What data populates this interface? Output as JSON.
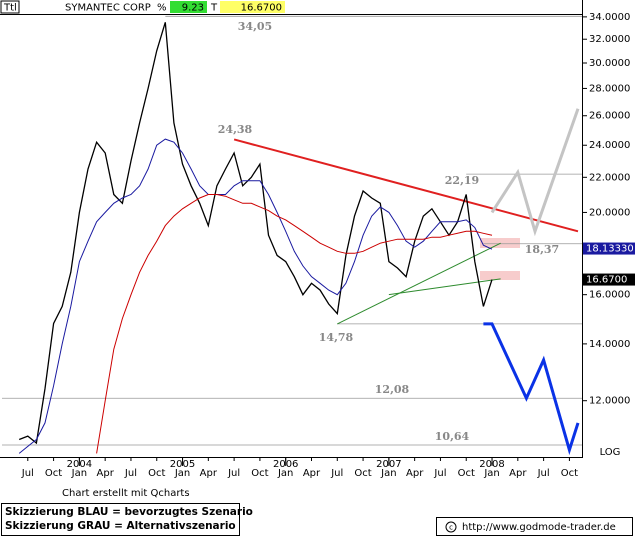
{
  "header": {
    "symbol": "Ttl",
    "name": "SYMANTEC CORP",
    "pct_label": "%",
    "pct": "9.23",
    "last_label": "T",
    "last": "16.6700"
  },
  "chart_data": {
    "type": "line",
    "log_scale": true,
    "x": [
      "2003-06",
      "2003-07",
      "2003-08",
      "2003-09",
      "2003-10",
      "2003-11",
      "2003-12",
      "2004-01",
      "2004-02",
      "2004-03",
      "2004-04",
      "2004-05",
      "2004-06",
      "2004-07",
      "2004-08",
      "2004-09",
      "2004-10",
      "2004-11",
      "2004-12",
      "2005-01",
      "2005-02",
      "2005-03",
      "2005-04",
      "2005-05",
      "2005-06",
      "2005-07",
      "2005-08",
      "2005-09",
      "2005-10",
      "2005-11",
      "2005-12",
      "2006-01",
      "2006-02",
      "2006-03",
      "2006-04",
      "2006-05",
      "2006-06",
      "2006-07",
      "2006-08",
      "2006-09",
      "2006-10",
      "2006-11",
      "2006-12",
      "2007-01",
      "2007-02",
      "2007-03",
      "2007-04",
      "2007-05",
      "2007-06",
      "2007-07",
      "2007-08",
      "2007-09",
      "2007-10",
      "2007-11",
      "2007-12",
      "2008-01"
    ],
    "series": [
      {
        "color": "#000000",
        "values": [
          10.8,
          10.9,
          10.7,
          12.4,
          14.8,
          15.5,
          17.0,
          20.0,
          22.5,
          24.2,
          23.5,
          21.0,
          20.5,
          23.0,
          25.5,
          28.0,
          31.0,
          33.5,
          25.5,
          22.8,
          21.5,
          20.5,
          19.3,
          21.5,
          22.5,
          23.5,
          21.5,
          22.0,
          22.8,
          18.8,
          17.8,
          17.5,
          16.8,
          16.0,
          16.5,
          16.2,
          15.6,
          15.2,
          17.8,
          19.8,
          21.2,
          20.8,
          20.5,
          17.5,
          17.2,
          16.8,
          18.5,
          19.8,
          20.2,
          19.5,
          18.8,
          19.5,
          21.0,
          17.5,
          15.5,
          16.67
        ]
      },
      {
        "color": "#1a1aa0",
        "values": [
          10.4,
          10.6,
          10.8,
          11.3,
          12.5,
          14.0,
          15.5,
          17.5,
          18.5,
          19.5,
          20,
          20.5,
          20.8,
          21,
          21.5,
          22.5,
          24,
          24.4,
          24.2,
          23.5,
          22.5,
          21.5,
          21,
          21,
          21,
          21.5,
          21.8,
          21.8,
          21.8,
          21,
          20,
          19,
          18,
          17.3,
          16.8,
          16.5,
          16.2,
          16.0,
          16.5,
          17.5,
          18.8,
          19.8,
          20.3,
          20,
          19.3,
          18.5,
          18.2,
          18.5,
          19,
          19.5,
          19.5,
          19.5,
          19.6,
          19.2,
          18.3,
          18.1
        ]
      },
      {
        "color": "#cc0000",
        "values": [
          null,
          null,
          null,
          null,
          null,
          null,
          null,
          null,
          null,
          10.4,
          12,
          13.8,
          15,
          16,
          17,
          17.8,
          18.5,
          19.3,
          19.8,
          20.2,
          20.5,
          20.8,
          21,
          21,
          20.9,
          20.7,
          20.5,
          20.5,
          20.3,
          20.1,
          19.8,
          19.6,
          19.3,
          19.0,
          18.7,
          18.4,
          18.2,
          18.0,
          17.9,
          17.9,
          18.0,
          18.2,
          18.4,
          18.5,
          18.6,
          18.6,
          18.6,
          18.6,
          18.7,
          18.7,
          18.8,
          18.9,
          19.0,
          19.0,
          18.9,
          18.8
        ]
      },
      {
        "name": "Skizzierung BLAU = bevorzugtes Szenario",
        "color": "#0a32e6",
        "x": [
          "2007-12",
          "2008-01",
          "2008-05",
          "2008-07",
          "2008-10",
          "2008-11"
        ],
        "values": [
          14.78,
          14.78,
          12.08,
          13.4,
          10.5,
          11.3
        ]
      },
      {
        "name": "Skizzierung GRAU = Alternativszenario",
        "color": "#c4c4c4",
        "x": [
          "2008-01",
          "2008-04",
          "2008-06",
          "2008-11"
        ],
        "values": [
          20.0,
          22.3,
          19.0,
          26.5
        ]
      }
    ],
    "trendlines": [
      {
        "color": "#e02020",
        "x": [
          "2005-07",
          "2008-11"
        ],
        "values": [
          24.38,
          19.0
        ]
      },
      {
        "color": "#2e8b2e",
        "x": [
          "2006-07",
          "2008-02"
        ],
        "values": [
          14.78,
          18.4
        ]
      },
      {
        "color": "#2e8b2e",
        "x": [
          "2007-01",
          "2008-02"
        ],
        "values": [
          16.0,
          16.7
        ]
      }
    ],
    "levels": [
      {
        "x": "2004-11",
        "value": 34.05,
        "label": "34,05",
        "line": true
      },
      {
        "x": "2005-07",
        "value": 24.38,
        "label": "24,38",
        "line": false
      },
      {
        "x": "2007-10",
        "value": 22.19,
        "label": "22,19",
        "line": true
      },
      {
        "x": "2007-12",
        "value": 18.37,
        "label": "18,37",
        "line": true
      },
      {
        "x": "2006-07",
        "value": 14.78,
        "label": "14,78",
        "line": true
      },
      {
        "x": "2003-04",
        "value": 12.08,
        "label": "12,08",
        "line": true
      },
      {
        "x": "2003-04",
        "value": 10.64,
        "label": "10,64",
        "line": true
      }
    ],
    "price_labels": [
      {
        "value": 18.1333,
        "label": "18.13330",
        "color": "#1a1aa0"
      },
      {
        "value": 16.67,
        "label": "16.6700",
        "color": "#000000"
      }
    ],
    "xlim": [
      "2003-04",
      "2008-11"
    ],
    "ylim": [
      10.3,
      35.4
    ],
    "yticks": [
      {
        "value": 12,
        "label": "12.0000"
      },
      {
        "value": 14,
        "label": "14.0000"
      },
      {
        "value": 16,
        "label": "16.0000"
      },
      {
        "value": 18,
        "label": "18.0000"
      },
      {
        "value": 20,
        "label": "20.0000"
      },
      {
        "value": 22,
        "label": "22.0000"
      },
      {
        "value": 24,
        "label": "24.0000"
      },
      {
        "value": 26,
        "label": "26.0000"
      },
      {
        "value": 28,
        "label": "28.0000"
      },
      {
        "value": 30,
        "label": "30.0000"
      },
      {
        "value": 32,
        "label": "32.0000"
      },
      {
        "value": 34,
        "label": "34.0000"
      }
    ],
    "xticks": [
      {
        "value": "2003-07",
        "label": "Jul"
      },
      {
        "value": "2003-10",
        "label": "Oct"
      },
      {
        "value": "2004-01",
        "label": "Jan"
      },
      {
        "value": "2004-04",
        "label": "Apr"
      },
      {
        "value": "2004-07",
        "label": "Jul"
      },
      {
        "value": "2004-10",
        "label": "Oct"
      },
      {
        "value": "2005-01",
        "label": "Jan"
      },
      {
        "value": "2005-04",
        "label": "Apr"
      },
      {
        "value": "2005-07",
        "label": "Jul"
      },
      {
        "value": "2005-10",
        "label": "Oct"
      },
      {
        "value": "2006-01",
        "label": "Jan"
      },
      {
        "value": "2006-04",
        "label": "Apr"
      },
      {
        "value": "2006-07",
        "label": "Jul"
      },
      {
        "value": "2006-10",
        "label": "Oct"
      },
      {
        "value": "2007-01",
        "label": "Jan"
      },
      {
        "value": "2007-04",
        "label": "Apr"
      },
      {
        "value": "2007-07",
        "label": "Jul"
      },
      {
        "value": "2007-10",
        "label": "Oct"
      },
      {
        "value": "2008-01",
        "label": "Jan"
      },
      {
        "value": "2008-04",
        "label": "Apr"
      },
      {
        "value": "2008-07",
        "label": "Jul"
      },
      {
        "value": "2008-10",
        "label": "Oct"
      }
    ],
    "year_ticks": [
      {
        "value": "2004-01",
        "label": "2004"
      },
      {
        "value": "2005-01",
        "label": "2005"
      },
      {
        "value": "2006-01",
        "label": "2006"
      },
      {
        "value": "2007-01",
        "label": "2007"
      },
      {
        "value": "2008-01",
        "label": "2008"
      }
    ],
    "scale_label": "LOG",
    "credit": "Chart erstellt mit Qcharts",
    "url": "http://www.godmode-trader.de"
  }
}
